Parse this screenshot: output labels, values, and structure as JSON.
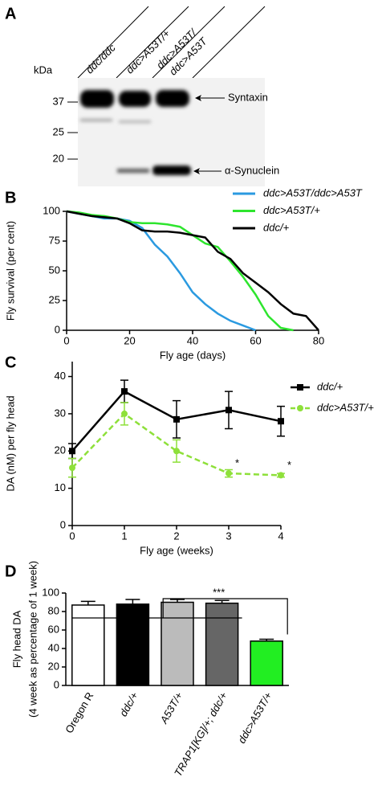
{
  "blot": {
    "panel": "A",
    "lanes": [
      "ddc/ddc",
      "ddc>A53T/+",
      "ddc>A53T/",
      "ddc>A53T"
    ],
    "unit": "kDa",
    "markers": [
      "37",
      "25",
      "20"
    ],
    "bands": [
      "Syntaxin",
      "α-Synuclein"
    ]
  },
  "chart_data": [
    {
      "type": "line",
      "panel": "B",
      "x_label": "Fly age (days)",
      "y_label": "Fly survival (per cent)",
      "x": [
        0,
        4,
        8,
        12,
        16,
        20,
        24,
        28,
        32,
        36,
        40,
        44,
        48,
        52,
        56,
        60,
        64,
        68,
        72,
        76,
        80
      ],
      "series": [
        {
          "name": "ddc>A53T/ddc>A53T",
          "color": "#2b9ae0",
          "values": [
            100,
            98,
            96,
            94,
            94,
            92,
            86,
            72,
            62,
            48,
            32,
            22,
            14,
            8,
            4,
            0,
            null,
            null,
            null,
            null,
            null
          ]
        },
        {
          "name": "ddc>A53T/+",
          "color": "#2ee52e",
          "values": [
            100,
            99,
            97,
            96,
            94,
            91,
            90,
            90,
            89,
            87,
            80,
            73,
            70,
            58,
            45,
            30,
            12,
            2,
            0,
            null,
            null
          ]
        },
        {
          "name": "ddc/+",
          "color": "#000000",
          "values": [
            100,
            98,
            96,
            95,
            94,
            90,
            84,
            83,
            83,
            82,
            80,
            78,
            66,
            60,
            48,
            40,
            32,
            22,
            14,
            12,
            0
          ]
        }
      ],
      "xlim": [
        0,
        80
      ],
      "xticks": [
        0,
        20,
        40,
        60,
        80
      ],
      "ylim": [
        0,
        100
      ],
      "yticks": [
        0,
        25,
        50,
        75,
        100
      ]
    },
    {
      "type": "errorline",
      "panel": "C",
      "x_label": "Fly age (weeks)",
      "y_label": "DA (nM) per fly head",
      "x": [
        0,
        1,
        2,
        3,
        4
      ],
      "series": [
        {
          "name": "ddc/+",
          "color": "#000000",
          "marker": "square",
          "dashed": false,
          "values": [
            20,
            36,
            28.5,
            31,
            28
          ],
          "errors": [
            2,
            3,
            5,
            5,
            4
          ]
        },
        {
          "name": "ddc>A53T/+",
          "color": "#8ee03a",
          "marker": "circle",
          "dashed": true,
          "values": [
            15.5,
            30,
            20,
            14,
            13.5
          ],
          "errors": [
            2.5,
            3,
            3,
            1,
            0.5
          ]
        }
      ],
      "annotations": [
        {
          "text": "*",
          "x": 3
        },
        {
          "text": "*",
          "x": 4
        }
      ],
      "xlim": [
        0,
        4
      ],
      "xticks": [
        0,
        1,
        2,
        3,
        4
      ],
      "ylim": [
        0,
        44
      ],
      "yticks": [
        0,
        10,
        20,
        30,
        40
      ]
    },
    {
      "type": "bar",
      "panel": "D",
      "y_label": "Fly head DA",
      "y_label_sub": "(4 week as percentage of 1 week)",
      "categories": [
        "Oregon R",
        "ddc/+",
        "A53T/+",
        "TRAP1[KG]/+; ddc/+",
        "ddc>A53T/+"
      ],
      "values": [
        87,
        88,
        90,
        89,
        48
      ],
      "errors": [
        4,
        5,
        3,
        3,
        2
      ],
      "colors": [
        "#ffffff",
        "#000000",
        "#bbbbbb",
        "#666666",
        "#22ee22"
      ],
      "significance": "***",
      "ylim": [
        0,
        100
      ],
      "yticks": [
        0,
        20,
        40,
        60,
        80,
        100
      ]
    }
  ]
}
